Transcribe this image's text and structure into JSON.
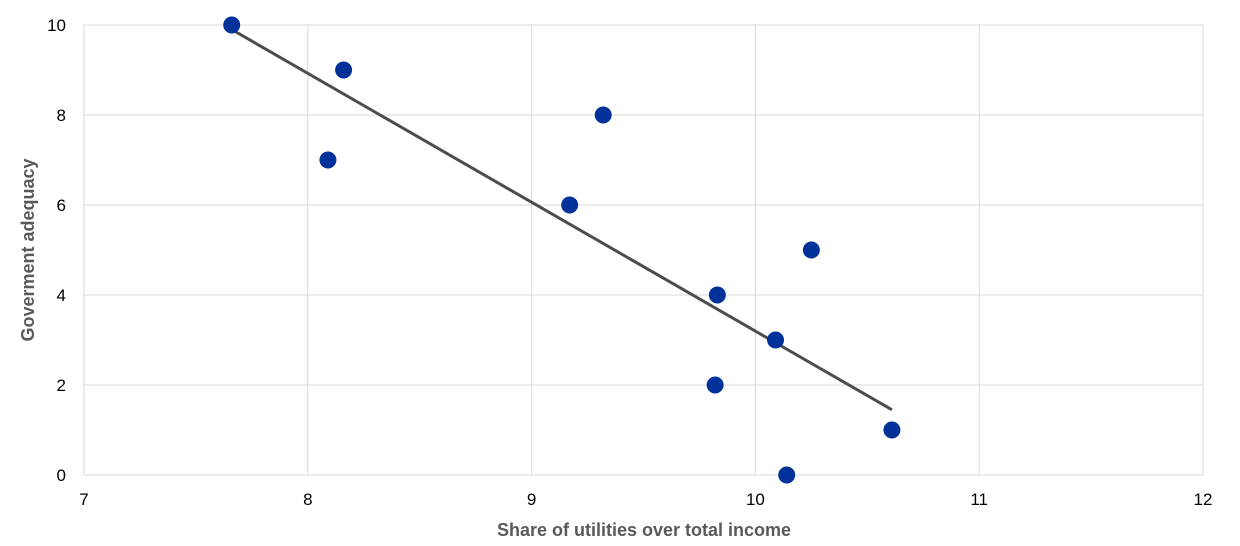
{
  "chart_data": {
    "type": "scatter",
    "xlabel": "Share of utilities over total income",
    "ylabel": "Goverment adequacy",
    "xlim": [
      7,
      12
    ],
    "ylim": [
      0,
      10
    ],
    "xticks": [
      7,
      8,
      9,
      10,
      11,
      12
    ],
    "yticks": [
      0,
      2,
      4,
      6,
      8,
      10
    ],
    "grid": true,
    "points": [
      {
        "x": 7.66,
        "y": 10
      },
      {
        "x": 8.16,
        "y": 9
      },
      {
        "x": 8.09,
        "y": 7
      },
      {
        "x": 9.32,
        "y": 8
      },
      {
        "x": 9.17,
        "y": 6
      },
      {
        "x": 10.25,
        "y": 5
      },
      {
        "x": 9.83,
        "y": 4
      },
      {
        "x": 10.09,
        "y": 3
      },
      {
        "x": 9.82,
        "y": 2
      },
      {
        "x": 10.61,
        "y": 1
      },
      {
        "x": 10.14,
        "y": 0
      }
    ],
    "trendline": {
      "x": [
        7.66,
        10.61
      ],
      "y": [
        9.9,
        1.45
      ]
    },
    "colors": {
      "points": "#003299",
      "trendline": "#4d4d4d",
      "grid": "#d9d9d9"
    }
  }
}
